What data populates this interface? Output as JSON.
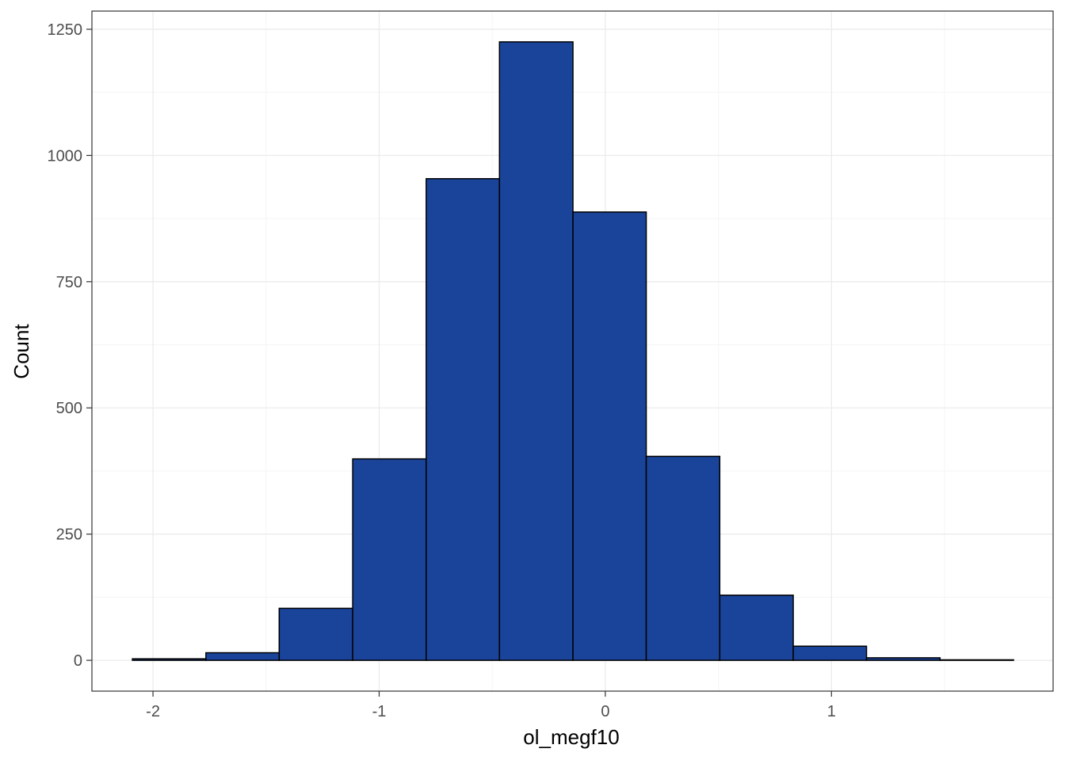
{
  "chart_data": {
    "type": "bar",
    "title": "",
    "xlabel": "ol_megf10",
    "ylabel": "Count",
    "bin_width": 0.3246,
    "bins": [
      {
        "x0": -2.091,
        "x1": -1.766,
        "count": 3
      },
      {
        "x0": -1.766,
        "x1": -1.442,
        "count": 15
      },
      {
        "x0": -1.442,
        "x1": -1.117,
        "count": 103
      },
      {
        "x0": -1.117,
        "x1": -0.792,
        "count": 399
      },
      {
        "x0": -0.792,
        "x1": -0.468,
        "count": 954
      },
      {
        "x0": -0.468,
        "x1": -0.143,
        "count": 1225
      },
      {
        "x0": -0.143,
        "x1": 0.181,
        "count": 888
      },
      {
        "x0": 0.181,
        "x1": 0.506,
        "count": 404
      },
      {
        "x0": 0.506,
        "x1": 0.831,
        "count": 129
      },
      {
        "x0": 0.831,
        "x1": 1.155,
        "count": 28
      },
      {
        "x0": 1.155,
        "x1": 1.48,
        "count": 5
      },
      {
        "x0": 1.48,
        "x1": 1.805,
        "count": 1
      }
    ],
    "xlim": [
      -2.27,
      1.98
    ],
    "ylim": [
      -61,
      1286
    ],
    "x_ticks": [
      -2,
      -1,
      0,
      1
    ],
    "x_tick_labels": [
      "-2",
      "-1",
      "0",
      "1"
    ],
    "y_ticks": [
      0,
      250,
      500,
      750,
      1000,
      1250
    ],
    "y_tick_labels": [
      "0",
      "250",
      "500",
      "750",
      "1000",
      "1250"
    ],
    "grid": true,
    "legend": "none",
    "colors": {
      "bar_fill": "#1a4499",
      "bar_outline": "#000000",
      "grid_major": "#ebebeb",
      "grid_minor": "#f5f5f5",
      "panel_border": "#333333",
      "tick_text": "#4d4d4d"
    }
  }
}
